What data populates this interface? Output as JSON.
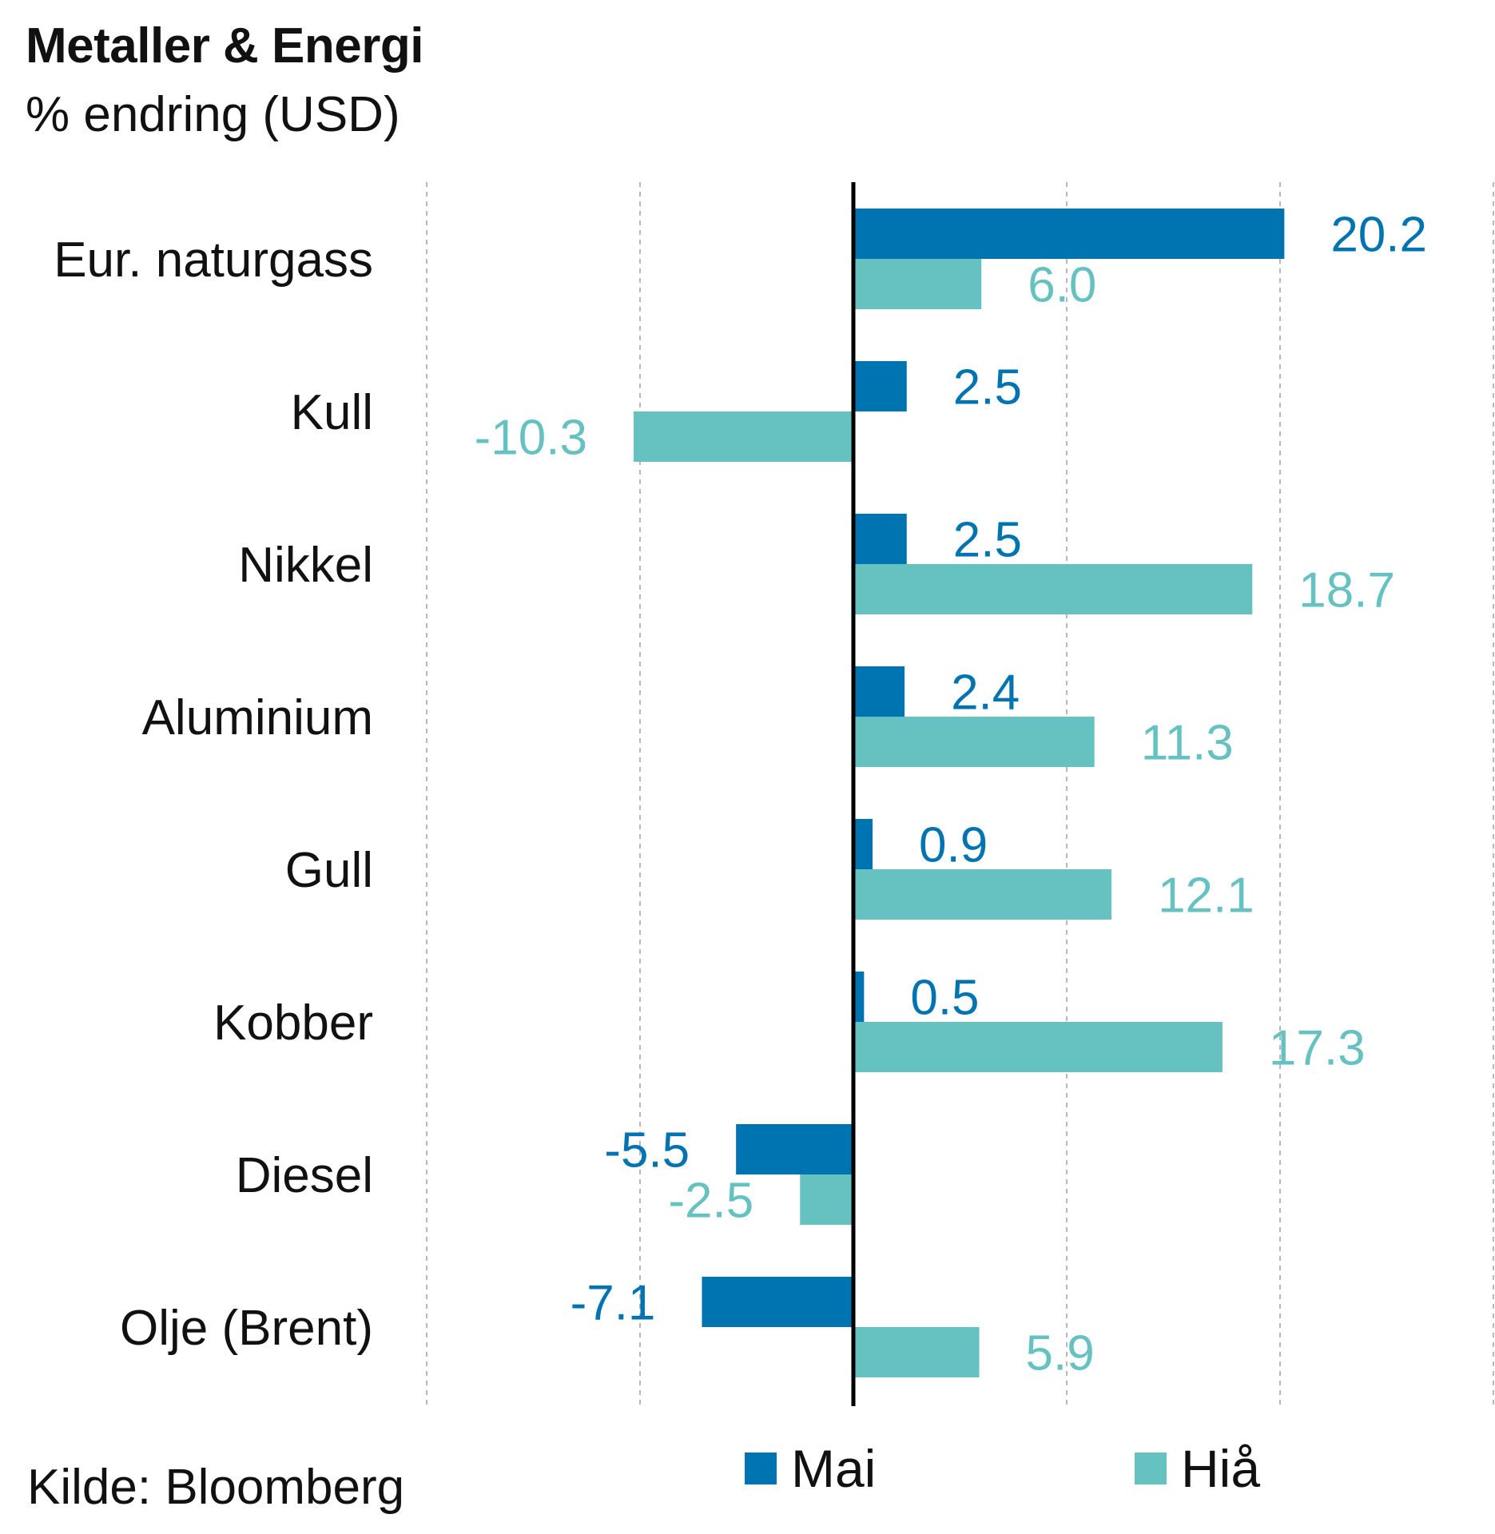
{
  "colors": {
    "mai": "#0073b1",
    "hia": "#66c2c0",
    "axis": "#000000",
    "grid": "#a0a0a0"
  },
  "chart_data": {
    "type": "bar",
    "orientation": "horizontal",
    "title": "Metaller & Energi",
    "subtitle": "% endring (USD)",
    "source": "Kilde: Bloomberg",
    "categories": [
      "Eur. naturgass",
      "Kull",
      "Nikkel",
      "Aluminium",
      "Gull",
      "Kobber",
      "Diesel",
      "Olje (Brent)"
    ],
    "series": [
      {
        "name": "Mai",
        "values": [
          20.2,
          2.5,
          2.5,
          2.4,
          0.9,
          0.5,
          -5.5,
          -7.1
        ],
        "labels": [
          "20.2",
          "2.5",
          "2.5",
          "2.4",
          "0.9",
          "0.5",
          "-5.5",
          "-7.1"
        ]
      },
      {
        "name": "Hiå",
        "values": [
          6.0,
          -10.3,
          18.7,
          11.3,
          12.1,
          17.3,
          -2.5,
          5.9
        ],
        "labels": [
          "6.0",
          "-10.3",
          "18.7",
          "11.3",
          "12.1",
          "17.3",
          "-2.5",
          "5.9"
        ]
      }
    ],
    "xlim": [
      -20,
      30
    ],
    "grid": true,
    "legend_position": "bottom"
  }
}
